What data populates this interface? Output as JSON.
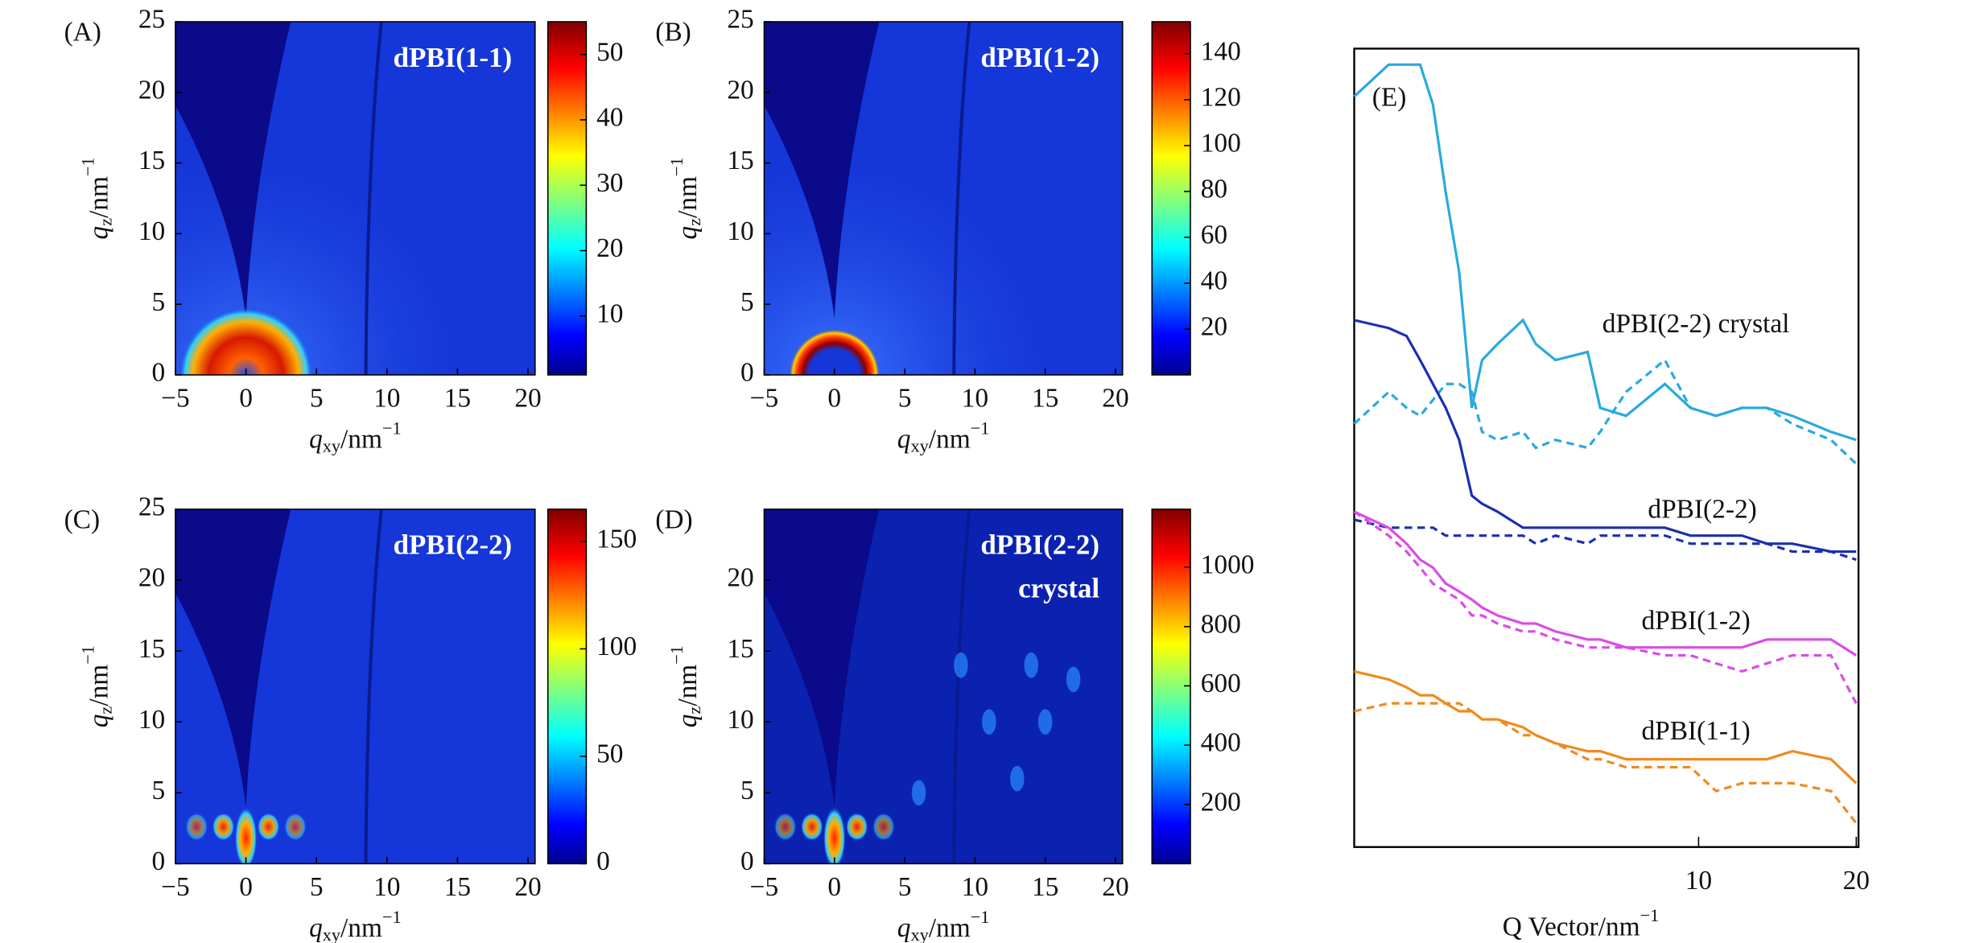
{
  "chart_data": [
    {
      "type": "heatmap",
      "panel_label": "(A)",
      "title": [
        "dPBI(1-1)"
      ],
      "x_label": [
        "q",
        "xy",
        "/nm",
        "−1"
      ],
      "y_label": [
        "q",
        "z",
        "/nm",
        "−1"
      ],
      "xlim": [
        -5,
        20.5
      ],
      "ylim": [
        0,
        25
      ],
      "xticks": [
        {
          "value": -5,
          "label": "−5"
        },
        0,
        5,
        10,
        15,
        20
      ],
      "yticks": [
        0,
        5,
        10,
        15,
        20,
        25
      ],
      "clim": [
        1,
        55
      ],
      "cticks": [
        10,
        20,
        30,
        40,
        50
      ]
    },
    {
      "type": "heatmap",
      "panel_label": "(B)",
      "title": [
        "dPBI(1-2)"
      ],
      "x_label": [
        "q",
        "xy",
        "/nm",
        "−1"
      ],
      "y_label": [
        "q",
        "z",
        "/nm",
        "−1"
      ],
      "xlim": [
        -5,
        20.5
      ],
      "ylim": [
        0,
        25
      ],
      "xticks": [
        {
          "value": -5,
          "label": "−5"
        },
        0,
        5,
        10,
        15,
        20
      ],
      "yticks": [
        0,
        5,
        10,
        15,
        20,
        25
      ],
      "clim": [
        0,
        154
      ],
      "cticks": [
        20,
        40,
        60,
        80,
        100,
        120,
        140
      ]
    },
    {
      "type": "heatmap",
      "panel_label": "(C)",
      "title": [
        "dPBI(2-2)"
      ],
      "x_label": [
        "q",
        "xy",
        "/nm",
        "−1"
      ],
      "y_label": [
        "q",
        "z",
        "/nm",
        "−1"
      ],
      "xlim": [
        -5,
        20.5
      ],
      "ylim": [
        0,
        25
      ],
      "xticks": [
        {
          "value": -5,
          "label": "−5"
        },
        0,
        5,
        10,
        15,
        20
      ],
      "yticks": [
        0,
        5,
        10,
        15,
        20,
        25
      ],
      "clim": [
        0,
        165
      ],
      "cticks": [
        0,
        50,
        100,
        150
      ]
    },
    {
      "type": "heatmap",
      "panel_label": "(D)",
      "title": [
        "dPBI(2-2)",
        "crystal"
      ],
      "x_label": [
        "q",
        "xy",
        "/nm",
        "−1"
      ],
      "y_label": [
        "q",
        "z",
        "/nm",
        "−1"
      ],
      "xlim": [
        -5,
        20.5
      ],
      "ylim": [
        0,
        25
      ],
      "xticks": [
        {
          "value": -5,
          "label": "−5"
        },
        0,
        5,
        10,
        15,
        20
      ],
      "yticks": [
        0,
        5,
        10,
        15,
        20
      ],
      "clim": [
        0,
        1196
      ],
      "cticks": [
        200,
        400,
        600,
        800,
        1000
      ]
    },
    {
      "type": "line",
      "panel_label": "(E)",
      "x_label": [
        "Q Vector/nm",
        "−1"
      ],
      "xscale": "log",
      "xlim": [
        2.2,
        20.2
      ],
      "xticks": [
        10,
        20
      ],
      "ylim": [
        0,
        1
      ],
      "x": [
        2.2,
        2.56,
        2.77,
        2.94,
        3.11,
        3.29,
        3.49,
        3.69,
        3.86,
        4.13,
        4.62,
        4.89,
        5.33,
        6.14,
        6.49,
        7.27,
        8.62,
        9.65,
        10.8,
        12.1,
        13.5,
        15.1,
        17.9,
        20.0
      ],
      "series": [
        {
          "name": "dPBI(2-2) crystal",
          "color": "#29a9e0",
          "values": [
            0.94,
            0.98,
            0.98,
            0.98,
            0.93,
            0.82,
            0.72,
            0.55,
            0.61,
            0.63,
            0.66,
            0.63,
            0.61,
            0.62,
            0.55,
            0.54,
            0.58,
            0.55,
            0.54,
            0.55,
            0.55,
            0.54,
            0.52,
            0.51
          ]
        },
        {
          "color": "#29a9e0",
          "dash": true,
          "values": [
            0.53,
            0.57,
            0.55,
            0.54,
            0.56,
            0.58,
            0.58,
            0.57,
            0.52,
            0.51,
            0.52,
            0.5,
            0.51,
            0.5,
            0.52,
            0.57,
            0.61,
            0.55,
            0.54,
            0.55,
            0.55,
            0.53,
            0.51,
            0.48
          ]
        },
        {
          "name": "dPBI(2-2)",
          "color": "#1a2fb0",
          "values": [
            0.66,
            0.65,
            0.64,
            0.61,
            0.58,
            0.55,
            0.51,
            0.44,
            0.43,
            0.42,
            0.4,
            0.4,
            0.4,
            0.4,
            0.4,
            0.4,
            0.4,
            0.39,
            0.39,
            0.39,
            0.38,
            0.38,
            0.37,
            0.37
          ]
        },
        {
          "color": "#1a2fb0",
          "dash": true,
          "values": [
            0.41,
            0.4,
            0.4,
            0.4,
            0.4,
            0.39,
            0.39,
            0.39,
            0.39,
            0.39,
            0.39,
            0.38,
            0.39,
            0.38,
            0.39,
            0.39,
            0.39,
            0.38,
            0.38,
            0.38,
            0.38,
            0.37,
            0.37,
            0.36
          ]
        },
        {
          "name": "dPBI(1-2)",
          "color": "#d94ce6",
          "values": [
            0.42,
            0.4,
            0.38,
            0.36,
            0.35,
            0.33,
            0.32,
            0.31,
            0.3,
            0.29,
            0.28,
            0.28,
            0.27,
            0.26,
            0.26,
            0.25,
            0.25,
            0.25,
            0.25,
            0.25,
            0.26,
            0.26,
            0.26,
            0.24
          ]
        },
        {
          "color": "#d94ce6",
          "dash": true,
          "values": [
            0.42,
            0.39,
            0.37,
            0.35,
            0.33,
            0.32,
            0.31,
            0.29,
            0.29,
            0.28,
            0.27,
            0.27,
            0.26,
            0.25,
            0.25,
            0.25,
            0.24,
            0.24,
            0.23,
            0.22,
            0.23,
            0.24,
            0.24,
            0.18
          ]
        },
        {
          "name": "dPBI(1-1)",
          "color": "#f08a1e",
          "values": [
            0.22,
            0.21,
            0.2,
            0.19,
            0.19,
            0.18,
            0.17,
            0.17,
            0.16,
            0.16,
            0.15,
            0.14,
            0.13,
            0.12,
            0.12,
            0.11,
            0.11,
            0.11,
            0.11,
            0.11,
            0.11,
            0.12,
            0.11,
            0.08
          ]
        },
        {
          "color": "#f08a1e",
          "dash": true,
          "values": [
            0.17,
            0.18,
            0.18,
            0.18,
            0.18,
            0.18,
            0.18,
            0.17,
            0.16,
            0.16,
            0.14,
            0.14,
            0.13,
            0.11,
            0.11,
            0.1,
            0.1,
            0.1,
            0.07,
            0.08,
            0.08,
            0.08,
            0.07,
            0.03
          ]
        }
      ]
    }
  ]
}
